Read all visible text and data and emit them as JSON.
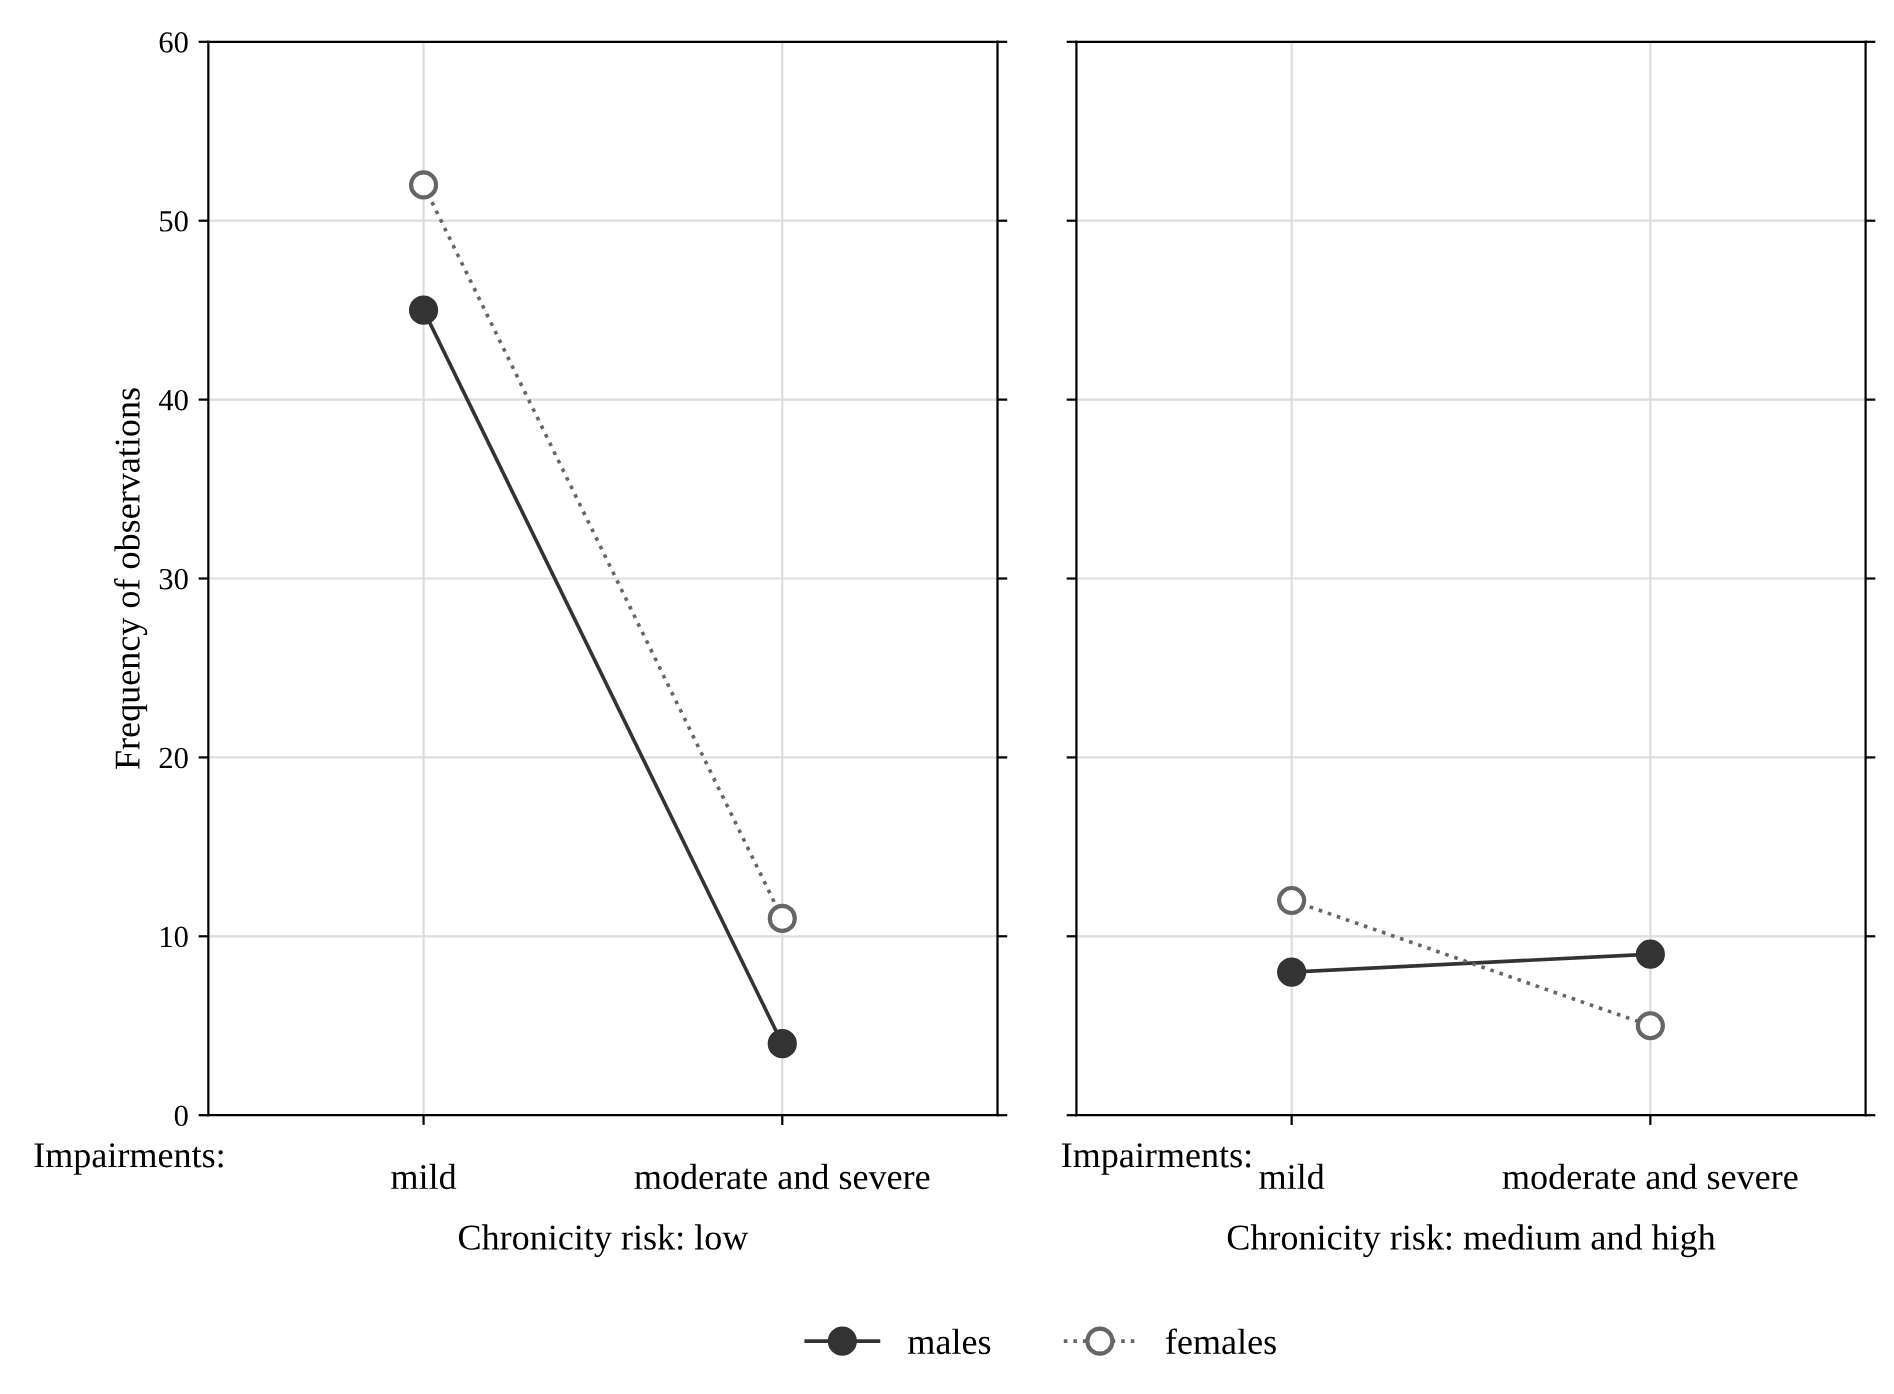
{
  "chart_data": [
    {
      "type": "line",
      "ylabel": "Frequency of observations",
      "xlabel": "Chronicity risk: low",
      "annotations": [
        "Impairments:"
      ],
      "categories": [
        "mild",
        "moderate and severe"
      ],
      "ylim": [
        0,
        60
      ],
      "yticks": [
        0,
        10,
        20,
        30,
        40,
        50,
        60
      ],
      "grid": true,
      "legend": "bottom",
      "marker": "circle",
      "series": [
        {
          "name": "males",
          "color": "#333333",
          "line_style": "solid",
          "values": [
            45,
            4
          ]
        },
        {
          "name": "females",
          "color": "#666666",
          "line_style": "dotted",
          "values": [
            52,
            11
          ]
        }
      ]
    },
    {
      "type": "line",
      "xlabel": "Chronicity risk: medium and high",
      "annotations": [
        "Impairments:"
      ],
      "categories": [
        "mild",
        "moderate and severe"
      ],
      "ylim": [
        0,
        60
      ],
      "yticks": [
        0,
        10,
        20,
        30,
        40,
        50,
        60
      ],
      "tick_labels": "x",
      "grid": true,
      "legend": "bottom",
      "marker": "circle",
      "series": [
        {
          "name": "males",
          "color": "#333333",
          "line_style": "solid",
          "values": [
            8,
            9
          ]
        },
        {
          "name": "females",
          "color": "#666666",
          "line_style": "dotted",
          "values": [
            12,
            5
          ]
        }
      ]
    }
  ]
}
